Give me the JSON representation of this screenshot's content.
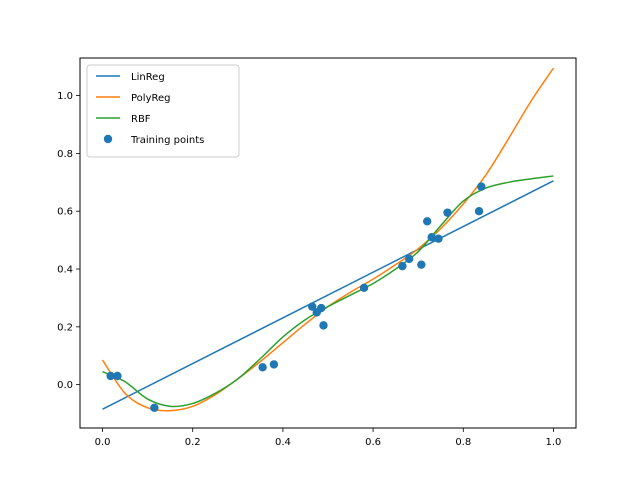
{
  "chart_data": {
    "type": "line",
    "title": "",
    "xlabel": "",
    "ylabel": "",
    "xlim": [
      -0.05,
      1.05
    ],
    "ylim": [
      -0.15,
      1.13
    ],
    "xticks": [
      0.0,
      0.2,
      0.4,
      0.6,
      0.8,
      1.0
    ],
    "xtick_labels": [
      "0.0",
      "0.2",
      "0.4",
      "0.6",
      "0.8",
      "1.0"
    ],
    "yticks": [
      0.0,
      0.2,
      0.4,
      0.6,
      0.8,
      1.0
    ],
    "ytick_labels": [
      "0.0",
      "0.2",
      "0.4",
      "0.6",
      "0.8",
      "1.0"
    ],
    "grid": false,
    "legend_position": "top-left",
    "series": [
      {
        "name": "LinReg",
        "kind": "line",
        "color": "#1f77b4",
        "x": [
          0.0,
          1.0
        ],
        "y": [
          -0.085,
          0.705
        ]
      },
      {
        "name": "PolyReg",
        "kind": "line",
        "color": "#ff7f0e",
        "x": [
          0.0,
          0.05,
          0.1,
          0.15,
          0.2,
          0.25,
          0.3,
          0.35,
          0.4,
          0.45,
          0.5,
          0.55,
          0.6,
          0.65,
          0.7,
          0.75,
          0.8,
          0.85,
          0.9,
          0.95,
          1.0
        ],
        "y": [
          0.085,
          -0.03,
          -0.08,
          -0.09,
          -0.075,
          -0.035,
          0.02,
          0.08,
          0.145,
          0.21,
          0.27,
          0.32,
          0.365,
          0.415,
          0.47,
          0.54,
          0.625,
          0.725,
          0.85,
          0.98,
          1.095
        ]
      },
      {
        "name": "RBF",
        "kind": "line",
        "color": "#2ca02c",
        "x": [
          0.0,
          0.05,
          0.1,
          0.15,
          0.2,
          0.25,
          0.3,
          0.35,
          0.4,
          0.45,
          0.5,
          0.55,
          0.6,
          0.65,
          0.7,
          0.75,
          0.8,
          0.85,
          0.9,
          0.95,
          1.0
        ],
        "y": [
          0.045,
          0.01,
          -0.05,
          -0.075,
          -0.065,
          -0.03,
          0.02,
          0.09,
          0.165,
          0.225,
          0.27,
          0.31,
          0.35,
          0.4,
          0.46,
          0.55,
          0.635,
          0.68,
          0.7,
          0.712,
          0.722
        ]
      },
      {
        "name": "Training points",
        "kind": "scatter",
        "color": "#1f77b4",
        "x": [
          0.018,
          0.033,
          0.115,
          0.355,
          0.38,
          0.465,
          0.475,
          0.485,
          0.49,
          0.58,
          0.665,
          0.68,
          0.707,
          0.72,
          0.73,
          0.745,
          0.765,
          0.835,
          0.84
        ],
        "y": [
          0.03,
          0.03,
          -0.08,
          0.06,
          0.07,
          0.27,
          0.25,
          0.265,
          0.205,
          0.335,
          0.41,
          0.435,
          0.415,
          0.565,
          0.51,
          0.505,
          0.595,
          0.6,
          0.685
        ]
      }
    ]
  }
}
